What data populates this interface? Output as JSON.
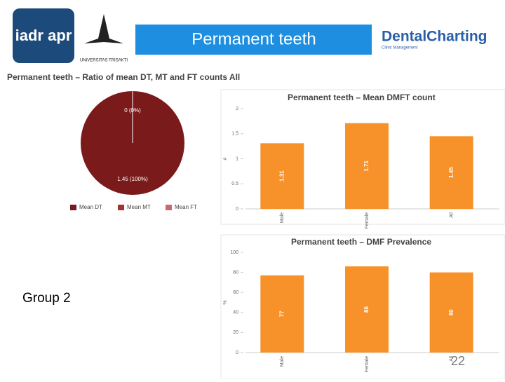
{
  "header": {
    "title": "Permanent teeth",
    "logo_left": "iadr apr",
    "logo_university": "UNIVERSITAS TRISAKTI",
    "logo_right": "DentalCharting",
    "logo_right_sub": "Clinic Management"
  },
  "group_label": "Group 2",
  "page_number": "22",
  "chart_data": [
    {
      "type": "pie",
      "title": "Permanent teeth – Ratio of mean DT, MT and FT counts All",
      "categories": [
        "Mean DT",
        "Mean MT",
        "Mean FT"
      ],
      "values": [
        1.45,
        0,
        0
      ],
      "value_labels": [
        "1.45 (100%)",
        "0 (0%)",
        null
      ],
      "colors": [
        "#7b1a1a",
        "#a83232",
        "#c96a6a"
      ],
      "legend": "bottom"
    },
    {
      "type": "bar",
      "title": "Permanent teeth – Mean DMFT count",
      "y_label": "#",
      "categories": [
        "Male",
        "Female",
        "All"
      ],
      "values": [
        1.31,
        1.71,
        1.45
      ],
      "color": "#f7922a",
      "ylim": [
        0,
        2
      ],
      "yticks": [
        0,
        0.5,
        1,
        1.5,
        2
      ]
    },
    {
      "type": "bar",
      "title": "Permanent teeth – DMF Prevalence",
      "y_label": "%",
      "categories": [
        "Male",
        "Female",
        "All"
      ],
      "values": [
        77,
        86,
        80
      ],
      "color": "#f7922a",
      "ylim": [
        0,
        100
      ],
      "yticks": [
        0,
        20,
        40,
        60,
        80,
        100
      ]
    }
  ]
}
